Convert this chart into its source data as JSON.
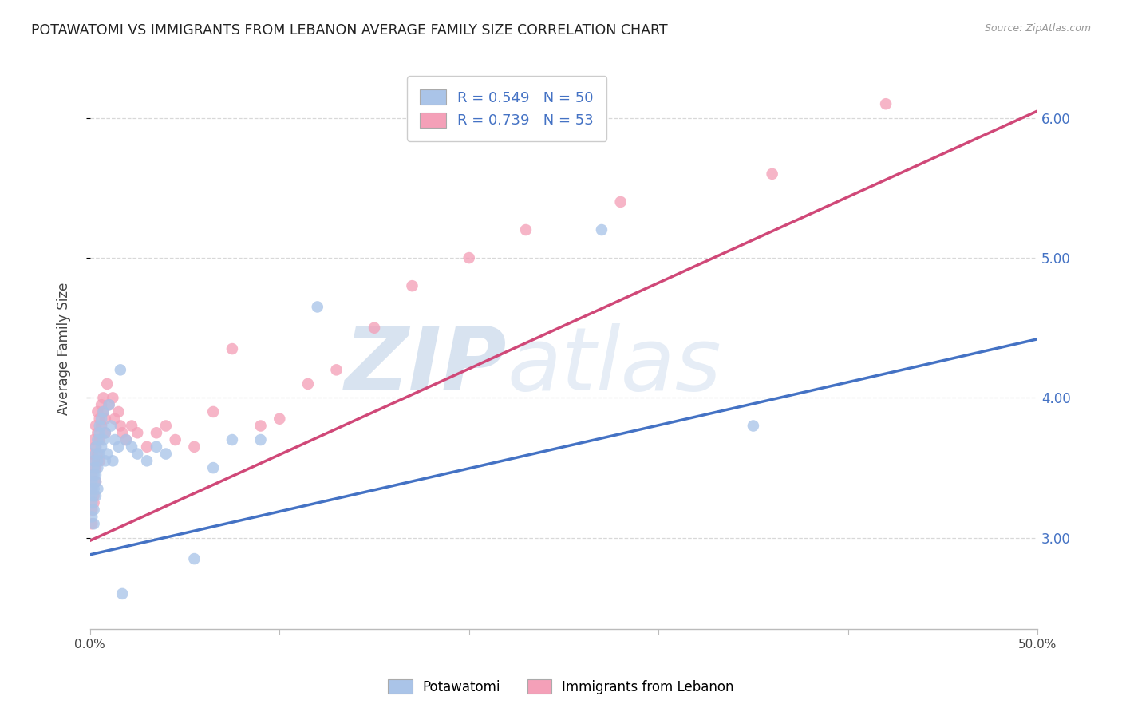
{
  "title": "POTAWATOMI VS IMMIGRANTS FROM LEBANON AVERAGE FAMILY SIZE CORRELATION CHART",
  "source": "Source: ZipAtlas.com",
  "ylabel": "Average Family Size",
  "xlim": [
    0.0,
    0.5
  ],
  "ylim": [
    2.35,
    6.35
  ],
  "yticks": [
    3.0,
    4.0,
    5.0,
    6.0
  ],
  "watermark_left": "ZIP",
  "watermark_right": "atlas",
  "legend_label1": "Potawatomi",
  "legend_label2": "Immigrants from Lebanon",
  "r1": "0.549",
  "n1": "50",
  "r2": "0.739",
  "n2": "53",
  "color1": "#aac4e8",
  "color2": "#f4a0b8",
  "line_color1": "#4472c4",
  "line_color2": "#d04878",
  "background": "#ffffff",
  "grid_color": "#d8d8d8",
  "title_color": "#222222",
  "source_color": "#999999",
  "potawatomi_x": [
    0.001,
    0.001,
    0.001,
    0.001,
    0.001,
    0.002,
    0.002,
    0.002,
    0.002,
    0.002,
    0.002,
    0.003,
    0.003,
    0.003,
    0.003,
    0.003,
    0.004,
    0.004,
    0.004,
    0.004,
    0.005,
    0.005,
    0.005,
    0.006,
    0.006,
    0.007,
    0.007,
    0.008,
    0.008,
    0.009,
    0.01,
    0.011,
    0.012,
    0.013,
    0.015,
    0.016,
    0.017,
    0.019,
    0.022,
    0.025,
    0.03,
    0.035,
    0.04,
    0.055,
    0.065,
    0.075,
    0.09,
    0.12,
    0.27,
    0.35
  ],
  "potawatomi_y": [
    3.4,
    3.35,
    3.3,
    3.25,
    3.15,
    3.45,
    3.5,
    3.35,
    3.2,
    3.1,
    3.55,
    3.6,
    3.45,
    3.3,
    3.65,
    3.4,
    3.7,
    3.55,
    3.5,
    3.35,
    3.75,
    3.6,
    3.8,
    3.65,
    3.85,
    3.7,
    3.9,
    3.75,
    3.55,
    3.6,
    3.95,
    3.8,
    3.55,
    3.7,
    3.65,
    4.2,
    2.6,
    3.7,
    3.65,
    3.6,
    3.55,
    3.65,
    3.6,
    2.85,
    3.5,
    3.7,
    3.7,
    4.65,
    5.2,
    3.8
  ],
  "lebanon_x": [
    0.001,
    0.001,
    0.001,
    0.001,
    0.001,
    0.002,
    0.002,
    0.002,
    0.002,
    0.003,
    0.003,
    0.003,
    0.003,
    0.004,
    0.004,
    0.004,
    0.005,
    0.005,
    0.005,
    0.006,
    0.006,
    0.007,
    0.007,
    0.008,
    0.008,
    0.009,
    0.01,
    0.012,
    0.013,
    0.015,
    0.016,
    0.017,
    0.019,
    0.022,
    0.025,
    0.03,
    0.035,
    0.04,
    0.045,
    0.055,
    0.065,
    0.075,
    0.09,
    0.1,
    0.115,
    0.13,
    0.15,
    0.17,
    0.2,
    0.23,
    0.28,
    0.36,
    0.42
  ],
  "lebanon_y": [
    3.6,
    3.45,
    3.35,
    3.2,
    3.1,
    3.7,
    3.55,
    3.3,
    3.25,
    3.8,
    3.65,
    3.5,
    3.4,
    3.9,
    3.75,
    3.6,
    3.85,
    3.7,
    3.55,
    3.95,
    3.8,
    4.0,
    3.9,
    3.85,
    3.75,
    4.1,
    3.95,
    4.0,
    3.85,
    3.9,
    3.8,
    3.75,
    3.7,
    3.8,
    3.75,
    3.65,
    3.75,
    3.8,
    3.7,
    3.65,
    3.9,
    4.35,
    3.8,
    3.85,
    4.1,
    4.2,
    4.5,
    4.8,
    5.0,
    5.2,
    5.4,
    5.6,
    6.1
  ]
}
